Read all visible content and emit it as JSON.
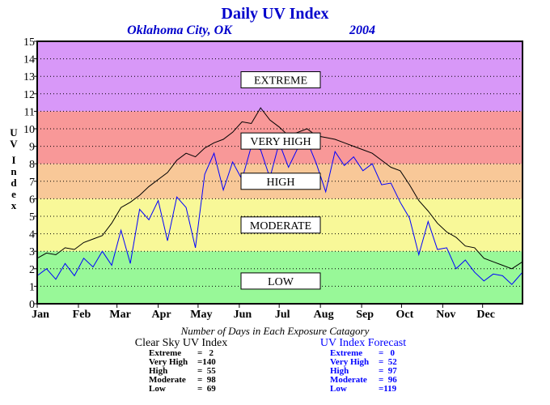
{
  "chart_data": {
    "type": "line",
    "title": "Daily UV Index",
    "subtitle_location": "Oklahoma City, OK",
    "subtitle_year": "2004",
    "ylabel": "UV Index",
    "ylim": [
      0,
      15
    ],
    "yticks": [
      "0",
      "1",
      "2",
      "3",
      "4",
      "5",
      "6",
      "7",
      "8",
      "9",
      "10",
      "11",
      "12",
      "13",
      "14",
      "15"
    ],
    "xlim": [
      1,
      366
    ],
    "month_labels": [
      "Jan",
      "Feb",
      "Mar",
      "Apr",
      "May",
      "Jun",
      "Jul",
      "Aug",
      "Sep",
      "Oct",
      "Nov",
      "Dec"
    ],
    "month_start_days": [
      1,
      32,
      61,
      92,
      122,
      153,
      183,
      214,
      245,
      275,
      306,
      336
    ],
    "grid": true,
    "bands": [
      {
        "name": "LOW",
        "from": 0,
        "to": 3,
        "color": "#98f898"
      },
      {
        "name": "MODERATE",
        "from": 3,
        "to": 6,
        "color": "#f8f898"
      },
      {
        "name": "HIGH",
        "from": 6,
        "to": 8,
        "color": "#f8c898"
      },
      {
        "name": "VERY HIGH",
        "from": 8,
        "to": 11,
        "color": "#f89898"
      },
      {
        "name": "EXTREME",
        "from": 11,
        "to": 15,
        "color": "#d898f8"
      }
    ],
    "band_label_values": [
      1.3,
      4.5,
      7.0,
      9.3,
      12.8
    ],
    "series": [
      {
        "name": "Clear Sky UV Index",
        "color": "#000000",
        "x": [
          1,
          8,
          15,
          22,
          29,
          36,
          43,
          50,
          57,
          64,
          71,
          78,
          85,
          92,
          99,
          106,
          113,
          120,
          127,
          134,
          141,
          148,
          155,
          162,
          169,
          176,
          183,
          190,
          197,
          204,
          211,
          218,
          225,
          232,
          239,
          246,
          253,
          260,
          267,
          274,
          281,
          288,
          295,
          302,
          309,
          316,
          323,
          330,
          337,
          344,
          351,
          358,
          366
        ],
        "y": [
          2.6,
          2.9,
          2.8,
          3.2,
          3.1,
          3.5,
          3.7,
          3.9,
          4.6,
          5.5,
          5.8,
          6.2,
          6.7,
          7.1,
          7.5,
          8.2,
          8.6,
          8.4,
          8.9,
          9.2,
          9.4,
          9.8,
          10.4,
          10.3,
          11.2,
          10.5,
          10.1,
          9.6,
          9.8,
          10.0,
          9.6,
          9.5,
          9.4,
          9.2,
          9.0,
          8.8,
          8.6,
          8.2,
          7.8,
          7.6,
          6.8,
          5.9,
          5.3,
          4.6,
          4.1,
          3.8,
          3.3,
          3.2,
          2.6,
          2.4,
          2.2,
          2.0,
          2.4
        ]
      },
      {
        "name": "UV Index Forecast",
        "color": "#0000ff",
        "x": [
          1,
          8,
          15,
          22,
          29,
          36,
          43,
          50,
          57,
          64,
          71,
          78,
          85,
          92,
          99,
          106,
          113,
          120,
          127,
          134,
          141,
          148,
          155,
          162,
          169,
          176,
          183,
          190,
          197,
          204,
          211,
          218,
          225,
          232,
          239,
          246,
          253,
          260,
          267,
          274,
          281,
          288,
          295,
          302,
          309,
          316,
          323,
          330,
          337,
          344,
          351,
          358,
          366
        ],
        "y": [
          1.6,
          2.0,
          1.4,
          2.3,
          1.6,
          2.6,
          2.1,
          3.0,
          2.2,
          4.2,
          2.3,
          5.4,
          4.8,
          5.9,
          3.6,
          6.1,
          5.5,
          3.2,
          7.4,
          8.6,
          6.5,
          8.1,
          7.1,
          9.0,
          8.8,
          7.2,
          9.2,
          7.8,
          8.9,
          9.3,
          8.0,
          6.4,
          8.7,
          7.9,
          8.4,
          7.6,
          8.0,
          6.8,
          6.9,
          5.8,
          4.9,
          2.8,
          4.7,
          3.1,
          3.2,
          2.0,
          2.5,
          1.8,
          1.3,
          1.7,
          1.6,
          1.1,
          1.8
        ]
      }
    ]
  },
  "legend": {
    "title": "Number of Days in Each Exposure Catagory",
    "clear_sky": {
      "heading": "Clear Sky UV Index",
      "rows": [
        {
          "label": "Extreme",
          "value": "=   2"
        },
        {
          "label": "Very High",
          "value": "=140"
        },
        {
          "label": "High",
          "value": "=  55"
        },
        {
          "label": "Moderate",
          "value": "=  98"
        },
        {
          "label": "Low",
          "value": "=  69"
        }
      ]
    },
    "forecast": {
      "heading": "UV Index Forecast",
      "rows": [
        {
          "label": "Extreme",
          "value": "=   0"
        },
        {
          "label": "Very High",
          "value": "=  52"
        },
        {
          "label": "High",
          "value": "=  97"
        },
        {
          "label": "Moderate",
          "value": "=  96"
        },
        {
          "label": "Low",
          "value": "=119"
        }
      ]
    }
  }
}
